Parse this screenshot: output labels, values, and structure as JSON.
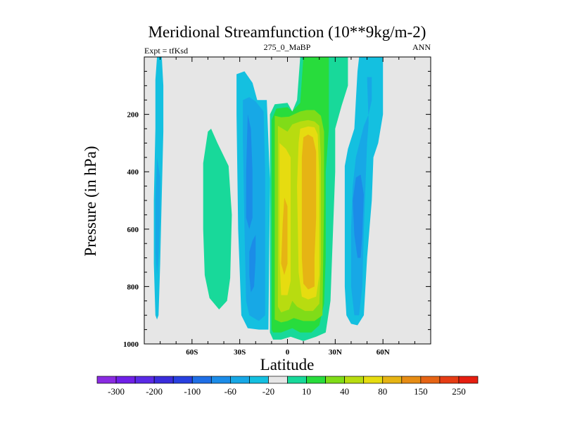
{
  "chart_data": {
    "type": "heatmap",
    "title": "Meridional Streamfunction (10**9kg/m-2)",
    "left_label": "Expt = tfKsd",
    "center_label": "275_0_MaBP",
    "right_label": "ANN",
    "xlabel": "Latitude",
    "ylabel": "Pressure (in hPa)",
    "xlim": [
      -90,
      90
    ],
    "ylim": [
      1000,
      0
    ],
    "y_reversed": true,
    "x_ticks": [
      {
        "value": -60,
        "label": "60S"
      },
      {
        "value": -30,
        "label": "30S"
      },
      {
        "value": 0,
        "label": "0"
      },
      {
        "value": 30,
        "label": "30N"
      },
      {
        "value": 60,
        "label": "60N"
      }
    ],
    "y_ticks": [
      {
        "value": 200,
        "label": "200"
      },
      {
        "value": 400,
        "label": "400"
      },
      {
        "value": 600,
        "label": "600"
      },
      {
        "value": 800,
        "label": "800"
      },
      {
        "value": 1000,
        "label": "1000"
      }
    ],
    "background_color": "#e6e6e6",
    "colorbar": {
      "colors": [
        "#8a2be2",
        "#7020e8",
        "#5a2ae6",
        "#3a2ddb",
        "#2840e0",
        "#1f6fe6",
        "#1b8ce8",
        "#17a8e6",
        "#14c0e0",
        "#e6e6e6",
        "#18d99a",
        "#28dc3c",
        "#80dc18",
        "#b8dc10",
        "#e6dc10",
        "#e6b414",
        "#e68c14",
        "#e66414",
        "#e63c14",
        "#e61e10"
      ],
      "labels": [
        {
          "after_index": 0,
          "text": "-300"
        },
        {
          "after_index": 2,
          "text": "-200"
        },
        {
          "after_index": 4,
          "text": "-100"
        },
        {
          "after_index": 6,
          "text": "-60"
        },
        {
          "after_index": 8,
          "text": "-20"
        },
        {
          "after_index": 10,
          "text": "10"
        },
        {
          "after_index": 12,
          "text": "40"
        },
        {
          "after_index": 14,
          "text": "80"
        },
        {
          "after_index": 16,
          "text": "150"
        },
        {
          "after_index": 18,
          "text": "250"
        }
      ]
    },
    "contour_regions": [
      {
        "name": "sh-polar-cell-minus10",
        "color": "#14c0e0",
        "points": [
          [
            -82,
            0
          ],
          [
            -79,
            0
          ],
          [
            -78,
            100
          ],
          [
            -78,
            260
          ],
          [
            -79,
            480
          ],
          [
            -80,
            720
          ],
          [
            -81,
            900
          ],
          [
            -82,
            915
          ],
          [
            -83,
            900
          ],
          [
            -84,
            720
          ],
          [
            -84,
            500
          ],
          [
            -83,
            250
          ],
          [
            -83,
            80
          ]
        ]
      },
      {
        "name": "sh-polar-cell-minus20",
        "color": "#17a8e6",
        "points": [
          [
            -82,
            350
          ],
          [
            -80,
            420
          ],
          [
            -80,
            550
          ],
          [
            -81,
            700
          ],
          [
            -82,
            760
          ],
          [
            -83,
            680
          ],
          [
            -83,
            500
          ]
        ]
      },
      {
        "name": "sh-ferrel-cell-10",
        "color": "#18d99a",
        "points": [
          [
            -53,
            370
          ],
          [
            -50,
            260
          ],
          [
            -48,
            250
          ],
          [
            -44,
            300
          ],
          [
            -37,
            380
          ],
          [
            -35,
            550
          ],
          [
            -36,
            770
          ],
          [
            -38,
            850
          ],
          [
            -43,
            880
          ],
          [
            -49,
            840
          ],
          [
            -52,
            760
          ],
          [
            -53,
            600
          ]
        ]
      },
      {
        "name": "sh-hadley-minus10",
        "color": "#14c0e0",
        "points": [
          [
            -32,
            60
          ],
          [
            -27,
            50
          ],
          [
            -22,
            90
          ],
          [
            -19,
            150
          ],
          [
            -13,
            150
          ],
          [
            -11,
            430
          ],
          [
            -12,
            950
          ],
          [
            -18,
            950
          ],
          [
            -25,
            945
          ],
          [
            -29,
            900
          ],
          [
            -30,
            750
          ],
          [
            -31,
            600
          ],
          [
            -32,
            200
          ]
        ]
      },
      {
        "name": "sh-hadley-minus20",
        "color": "#17a8e6",
        "points": [
          [
            -28,
            150
          ],
          [
            -24,
            140
          ],
          [
            -20,
            155
          ],
          [
            -15,
            190
          ],
          [
            -14,
            400
          ],
          [
            -14,
            900
          ],
          [
            -18,
            920
          ],
          [
            -24,
            900
          ],
          [
            -26,
            850
          ],
          [
            -27,
            600
          ],
          [
            -28,
            300
          ]
        ]
      },
      {
        "name": "sh-hadley-minus40",
        "color": "#1b8ce8",
        "points": [
          [
            -25,
            200
          ],
          [
            -23,
            250
          ],
          [
            -22,
            400
          ],
          [
            -22,
            560
          ],
          [
            -24,
            600
          ],
          [
            -26,
            560
          ],
          [
            -26,
            400
          ]
        ]
      },
      {
        "name": "sh-hadley-lobe-lower",
        "color": "#1b8ce8",
        "points": [
          [
            -22,
            640
          ],
          [
            -20,
            620
          ],
          [
            -20,
            700
          ],
          [
            -21,
            800
          ],
          [
            -23,
            820
          ],
          [
            -24,
            760
          ],
          [
            -24,
            680
          ]
        ]
      },
      {
        "name": "nh-hadley-10",
        "color": "#18d99a",
        "points": [
          [
            8,
            0
          ],
          [
            38,
            0
          ],
          [
            38,
            100
          ],
          [
            34,
            170
          ],
          [
            30,
            250
          ],
          [
            30,
            400
          ],
          [
            28,
            700
          ],
          [
            27,
            850
          ],
          [
            24,
            960
          ],
          [
            18,
            975
          ],
          [
            10,
            990
          ],
          [
            2,
            975
          ],
          [
            -4,
            985
          ],
          [
            -9,
            985
          ],
          [
            -11,
            960
          ],
          [
            -11,
            200
          ],
          [
            -8,
            165
          ],
          [
            0,
            160
          ],
          [
            3,
            190
          ],
          [
            6,
            150
          ]
        ]
      },
      {
        "name": "nh-hadley-20",
        "color": "#28dc3c",
        "points": [
          [
            10,
            0
          ],
          [
            26,
            0
          ],
          [
            26,
            250
          ],
          [
            24,
            400
          ],
          [
            24,
            700
          ],
          [
            23,
            860
          ],
          [
            20,
            935
          ],
          [
            15,
            960
          ],
          [
            8,
            960
          ],
          [
            3,
            945
          ],
          [
            -4,
            960
          ],
          [
            -9,
            960
          ],
          [
            -10,
            950
          ],
          [
            -10,
            220
          ],
          [
            -7,
            180
          ],
          [
            0,
            175
          ],
          [
            3,
            190
          ],
          [
            8,
            160
          ]
        ]
      },
      {
        "name": "nh-hadley-40",
        "color": "#80dc18",
        "points": [
          [
            -8,
            205
          ],
          [
            -4,
            210
          ],
          [
            1,
            208
          ],
          [
            4,
            200
          ],
          [
            8,
            190
          ],
          [
            12,
            185
          ],
          [
            17,
            185
          ],
          [
            21,
            205
          ],
          [
            23,
            260
          ],
          [
            23,
            500
          ],
          [
            22,
            900
          ],
          [
            17,
            920
          ],
          [
            10,
            920
          ],
          [
            4,
            910
          ],
          [
            0,
            920
          ],
          [
            -4,
            925
          ],
          [
            -8,
            915
          ],
          [
            -8,
            300
          ]
        ]
      },
      {
        "name": "nh-hadley-60",
        "color": "#b8dc10",
        "points": [
          [
            -6,
            240
          ],
          [
            -3,
            250
          ],
          [
            0,
            260
          ],
          [
            3,
            235
          ],
          [
            8,
            225
          ],
          [
            13,
            220
          ],
          [
            17,
            225
          ],
          [
            20,
            240
          ],
          [
            21,
            350
          ],
          [
            21,
            720
          ],
          [
            20,
            860
          ],
          [
            16,
            885
          ],
          [
            11,
            885
          ],
          [
            6,
            870
          ],
          [
            3,
            850
          ],
          [
            1,
            880
          ],
          [
            -4,
            890
          ],
          [
            -6,
            870
          ],
          [
            -6,
            500
          ]
        ]
      },
      {
        "name": "nh-hadley-80",
        "color": "#e6dc10",
        "points": [
          [
            -5,
            300
          ],
          [
            -1,
            320
          ],
          [
            2,
            350
          ],
          [
            2,
            780
          ],
          [
            0,
            830
          ],
          [
            -4,
            830
          ],
          [
            -5,
            700
          ]
        ]
      },
      {
        "name": "nh-hadley-80b",
        "color": "#e6dc10",
        "points": [
          [
            8,
            250
          ],
          [
            13,
            242
          ],
          [
            17,
            245
          ],
          [
            19,
            270
          ],
          [
            20,
            420
          ],
          [
            20,
            760
          ],
          [
            18,
            835
          ],
          [
            13,
            845
          ],
          [
            9,
            835
          ],
          [
            7,
            750
          ],
          [
            6,
            450
          ],
          [
            7,
            300
          ]
        ]
      },
      {
        "name": "nh-hadley-100",
        "color": "#e6b414",
        "points": [
          [
            10,
            280
          ],
          [
            13,
            270
          ],
          [
            16,
            280
          ],
          [
            18,
            330
          ],
          [
            18,
            560
          ],
          [
            17,
            700
          ],
          [
            17,
            800
          ],
          [
            13,
            810
          ],
          [
            10,
            790
          ],
          [
            9,
            700
          ],
          [
            9,
            450
          ],
          [
            9,
            350
          ]
        ]
      },
      {
        "name": "nh-hadley-100b",
        "color": "#e6b414",
        "points": [
          [
            -2,
            490
          ],
          [
            0,
            520
          ],
          [
            0,
            720
          ],
          [
            -2,
            760
          ],
          [
            -4,
            720
          ],
          [
            -3,
            580
          ]
        ]
      },
      {
        "name": "nh-ferrel-minus10",
        "color": "#14c0e0",
        "points": [
          [
            45,
            0
          ],
          [
            60,
            0
          ],
          [
            60,
            200
          ],
          [
            57,
            300
          ],
          [
            54,
            350
          ],
          [
            53,
            500
          ],
          [
            50,
            700
          ],
          [
            48,
            900
          ],
          [
            44,
            935
          ],
          [
            40,
            930
          ],
          [
            37,
            900
          ],
          [
            36,
            800
          ],
          [
            36,
            650
          ],
          [
            36,
            380
          ],
          [
            38,
            320
          ],
          [
            42,
            250
          ],
          [
            43,
            150
          ],
          [
            44,
            50
          ]
        ]
      },
      {
        "name": "nh-ferrel-minus20",
        "color": "#17a8e6",
        "points": [
          [
            50,
            70
          ],
          [
            53,
            70
          ],
          [
            53,
            150
          ],
          [
            51,
            200
          ],
          [
            48,
            240
          ],
          [
            43,
            350
          ],
          [
            41,
            450
          ],
          [
            40,
            600
          ],
          [
            40,
            800
          ],
          [
            42,
            900
          ],
          [
            45,
            900
          ],
          [
            47,
            800
          ],
          [
            48,
            600
          ],
          [
            50,
            300
          ],
          [
            51,
            230
          ]
        ]
      },
      {
        "name": "nh-ferrel-minus40",
        "color": "#1b8ce8",
        "points": [
          [
            43,
            420
          ],
          [
            46,
            410
          ],
          [
            48,
            480
          ],
          [
            47,
            620
          ],
          [
            46,
            700
          ],
          [
            44,
            700
          ],
          [
            42,
            620
          ],
          [
            41,
            500
          ]
        ]
      }
    ]
  }
}
